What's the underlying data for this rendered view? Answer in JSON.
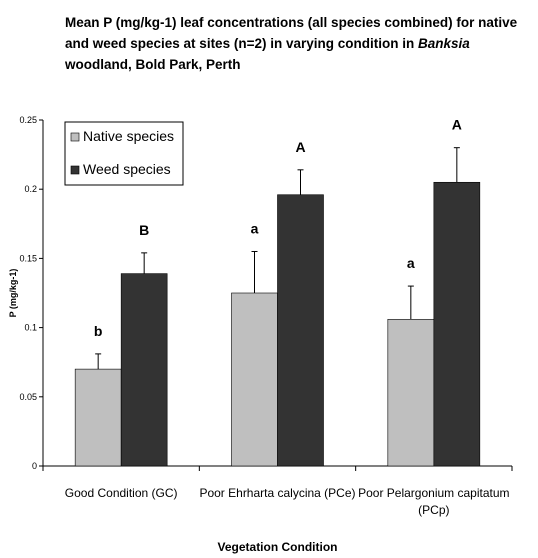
{
  "chart_data": {
    "type": "bar",
    "title": {
      "line1": "Mean P (mg/kg-1) leaf concentrations (all species combined) for native",
      "line2": "and  weed  species at sites (n=2) in varying condition in ",
      "line2_italic": "Banksia",
      "line3": "woodland, Bold Park, Perth"
    },
    "xlabel": "Vegetation Condition",
    "ylabel": "P (mg/kg-1)",
    "ylim": [
      0,
      0.25
    ],
    "yticks": [
      "0",
      "0.05",
      "0.1",
      "0.15",
      "0.2",
      "0.25"
    ],
    "categories": [
      [
        "Good Condition (GC)"
      ],
      [
        "Poor Ehrharta calycina (PCe)"
      ],
      [
        "Poor Pelargonium capitatum",
        "(PCp)"
      ]
    ],
    "series": [
      {
        "name": "Native species",
        "color": "#bfbfbf",
        "values": [
          0.07,
          0.125,
          0.106
        ],
        "errors": [
          0.011,
          0.03,
          0.024
        ],
        "letters": [
          "b",
          "a",
          "a"
        ]
      },
      {
        "name": "Weed species",
        "color": "#333333",
        "values": [
          0.139,
          0.196,
          0.205
        ],
        "errors": [
          0.015,
          0.018,
          0.025
        ],
        "letters": [
          "B",
          "A",
          "A"
        ]
      }
    ],
    "legend_position": "top-left"
  }
}
